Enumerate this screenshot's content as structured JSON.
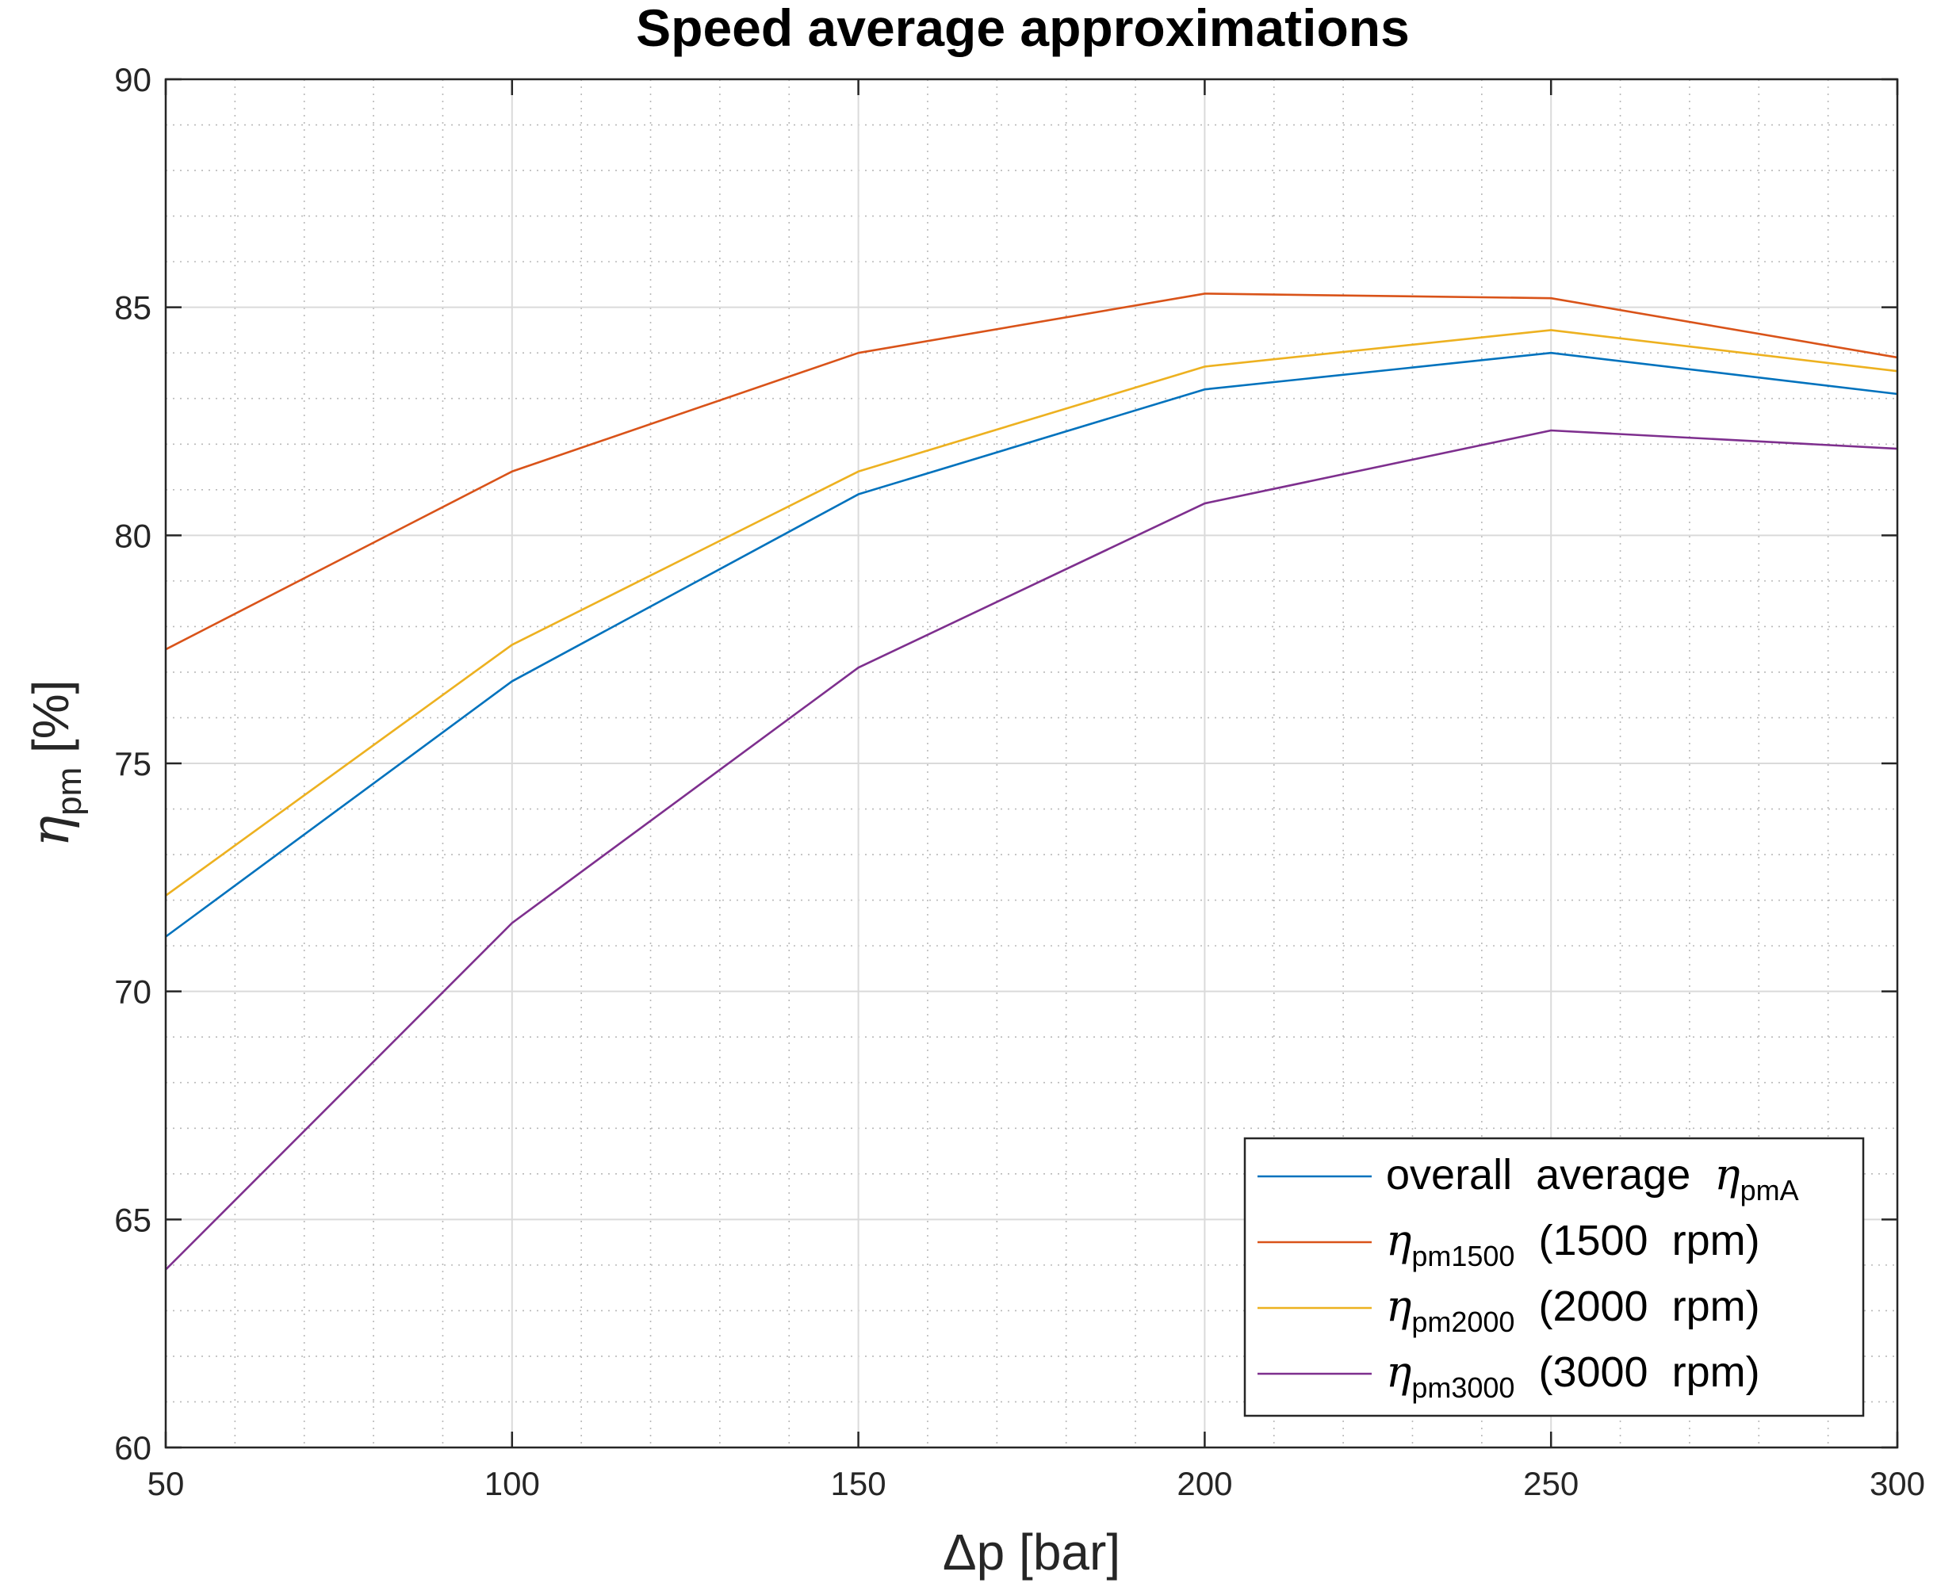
{
  "chart_data": {
    "type": "line",
    "title": "Speed average approximations",
    "xlabel": "Δp  [bar]",
    "ylabel": {
      "symbol": "η",
      "sub": "pm",
      "unit": "  [%]"
    },
    "xlim": [
      50,
      300
    ],
    "ylim": [
      60,
      90
    ],
    "xticks": [
      50,
      100,
      150,
      200,
      250,
      300
    ],
    "yticks": [
      60,
      65,
      70,
      75,
      80,
      85,
      90
    ],
    "grid": true,
    "minor_grid": true,
    "legend_position": "bottom-right",
    "x": [
      50,
      100,
      150,
      200,
      250,
      300
    ],
    "series": [
      {
        "name": "overall average",
        "legend_main": "overall  average  ",
        "legend_symbol": "η",
        "legend_sub": "pmA",
        "legend_suffix": "",
        "color": "#0072BD",
        "values": [
          71.2,
          76.8,
          80.9,
          83.2,
          84.0,
          83.1
        ]
      },
      {
        "name": "1500 rpm",
        "legend_main": "",
        "legend_symbol": "η",
        "legend_sub": "pm1500",
        "legend_suffix": "  (1500  rpm)",
        "color": "#D95319",
        "values": [
          77.5,
          81.4,
          84.0,
          85.3,
          85.2,
          83.9
        ]
      },
      {
        "name": "2000 rpm",
        "legend_main": "",
        "legend_symbol": "η",
        "legend_sub": "pm2000",
        "legend_suffix": "  (2000  rpm)",
        "color": "#EDB120",
        "values": [
          72.1,
          77.6,
          81.4,
          83.7,
          84.5,
          83.6
        ]
      },
      {
        "name": "3000 rpm",
        "legend_main": "",
        "legend_symbol": "η",
        "legend_sub": "pm3000",
        "legend_suffix": "  (3000  rpm)",
        "color": "#7E2F8E",
        "values": [
          63.9,
          71.5,
          77.1,
          80.7,
          82.3,
          81.9
        ]
      }
    ]
  }
}
